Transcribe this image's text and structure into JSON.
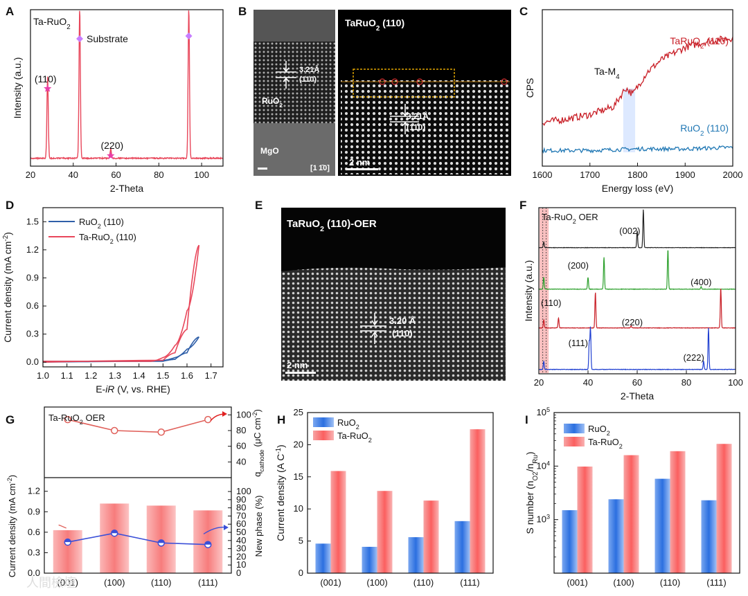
{
  "panels": {
    "A": "A",
    "B": "B",
    "C": "C",
    "D": "D",
    "E": "E",
    "F": "F",
    "G": "G",
    "H": "H",
    "I": "I"
  },
  "colors": {
    "ta": "#e8465a",
    "ru": "#2f5fa8",
    "taC": "#c81d25",
    "ruC": "#1f77b4",
    "green": "#2ca02c",
    "blue": "#1f3fd1",
    "black": "#222222"
  },
  "chart_data": [
    {
      "id": "A",
      "type": "line",
      "title": "Ta-RuO2",
      "xlabel": "2-Theta",
      "ylabel": "Intensity (a.u.)",
      "xlim": [
        20,
        110
      ],
      "xticks": [
        20,
        40,
        60,
        80,
        100
      ],
      "annotations": [
        "(110)",
        "Substrate",
        "(220)"
      ],
      "peaks": [
        {
          "x": 28,
          "height": 0.55,
          "label": "(110)",
          "marker": "star"
        },
        {
          "x": 43,
          "height": 1.0,
          "label": "Substrate",
          "marker": "diamond"
        },
        {
          "x": 57.5,
          "height": 0.06,
          "label": "(220)",
          "marker": "star"
        },
        {
          "x": 94,
          "height": 1.0,
          "label": "",
          "marker": "diamond"
        }
      ]
    },
    {
      "id": "C",
      "type": "line",
      "xlabel": "Energy loss (eV)",
      "ylabel": "CPS",
      "xlim": [
        1600,
        2000
      ],
      "xticks": [
        1600,
        1700,
        1800,
        1900,
        2000
      ],
      "annotation": "Ta-M4",
      "series": [
        {
          "name": "TaRuO2 (110)",
          "points": [
            [
              1600,
              0.28
            ],
            [
              1650,
              0.3
            ],
            [
              1700,
              0.33
            ],
            [
              1750,
              0.38
            ],
            [
              1775,
              0.5
            ],
            [
              1790,
              0.46
            ],
            [
              1820,
              0.6
            ],
            [
              1850,
              0.68
            ],
            [
              1900,
              0.76
            ],
            [
              1950,
              0.8
            ],
            [
              2000,
              0.82
            ]
          ]
        },
        {
          "name": "RuO2 (110)",
          "points": [
            [
              1600,
              0.1
            ],
            [
              1700,
              0.1
            ],
            [
              1800,
              0.11
            ],
            [
              1900,
              0.11
            ],
            [
              2000,
              0.12
            ]
          ]
        }
      ]
    },
    {
      "id": "D",
      "type": "line",
      "xlabel": "E-iR (V, vs. RHE)",
      "ylabel": "Current density (mA cm-2)",
      "xlim": [
        1.0,
        1.75
      ],
      "ylim": [
        -0.05,
        1.65
      ],
      "xticks": [
        1.0,
        1.1,
        1.2,
        1.3,
        1.4,
        1.5,
        1.6,
        1.7
      ],
      "yticks": [
        0.0,
        0.3,
        0.6,
        0.9,
        1.2,
        1.5
      ],
      "series": [
        {
          "name": "RuO2 (110)",
          "forward": [
            [
              1.0,
              0.01
            ],
            [
              1.45,
              0.01
            ],
            [
              1.5,
              0.02
            ],
            [
              1.55,
              0.05
            ],
            [
              1.6,
              0.14
            ],
            [
              1.65,
              0.27
            ]
          ],
          "backward": [
            [
              1.65,
              0.27
            ],
            [
              1.6,
              0.1
            ],
            [
              1.55,
              0.03
            ],
            [
              1.5,
              0.01
            ],
            [
              1.0,
              0.0
            ]
          ]
        },
        {
          "name": "Ta-RuO2 (110)",
          "forward": [
            [
              1.0,
              0.01
            ],
            [
              1.45,
              0.01
            ],
            [
              1.5,
              0.05
            ],
            [
              1.55,
              0.18
            ],
            [
              1.6,
              0.55
            ],
            [
              1.65,
              1.25
            ]
          ],
          "backward": [
            [
              1.65,
              1.25
            ],
            [
              1.6,
              0.35
            ],
            [
              1.55,
              0.1
            ],
            [
              1.5,
              0.02
            ],
            [
              1.0,
              0.0
            ]
          ]
        }
      ]
    },
    {
      "id": "F",
      "type": "line",
      "xlabel": "2-Theta",
      "ylabel": "Intensity (a.u.)",
      "xlim": [
        20,
        100
      ],
      "xticks": [
        20,
        40,
        60,
        80,
        100
      ],
      "annotation": "Ta-RuO2 OER",
      "traces": [
        {
          "color": "black",
          "peaks": [
            [
              22,
              0.15
            ],
            [
              60,
              0.45
            ],
            [
              62.5,
              1.0
            ]
          ],
          "labels": [
            [
              "(002)",
              57
            ]
          ]
        },
        {
          "color": "green",
          "peaks": [
            [
              22,
              0.3
            ],
            [
              40,
              0.3
            ],
            [
              46.5,
              0.8
            ],
            [
              72.5,
              1.0
            ],
            [
              86,
              0.06
            ]
          ],
          "labels": [
            [
              "(200)",
              36
            ],
            [
              "(400)",
              86
            ]
          ]
        },
        {
          "color": "taC",
          "peaks": [
            [
              22,
              0.2
            ],
            [
              28,
              0.25
            ],
            [
              43,
              0.9
            ],
            [
              57.5,
              0.05
            ],
            [
              94,
              1.0
            ]
          ],
          "labels": [
            [
              "(110)",
              25
            ],
            [
              "(220)",
              58
            ]
          ]
        },
        {
          "color": "blue",
          "peaks": [
            [
              22,
              0.2
            ],
            [
              40.5,
              0.65
            ],
            [
              41,
              1.0
            ],
            [
              87,
              0.2
            ],
            [
              89,
              1.0
            ]
          ],
          "labels": [
            [
              "(111)",
              36
            ],
            [
              "(222)",
              83
            ]
          ]
        }
      ]
    },
    {
      "id": "G",
      "type": "bar",
      "annotation": "Ta-RuO2 OER",
      "categories": [
        "(001)",
        "(100)",
        "(110)",
        "(111)"
      ],
      "q_cathode": [
        94,
        80,
        78,
        94
      ],
      "current_density": [
        0.63,
        1.02,
        0.99,
        0.92
      ],
      "new_phase": [
        38,
        49,
        37,
        35
      ],
      "ylabel_top": "qcathode (μC cm-2)",
      "ylabel_left": "Current density (mA cm-2)",
      "ylabel_right": "New phase (%)",
      "ylim_top": [
        20,
        110
      ],
      "ylim_left": [
        0,
        1.4
      ],
      "ylim_right": [
        0,
        117
      ],
      "yticks_top": [
        40,
        60,
        80,
        100
      ],
      "yticks_left": [
        0.0,
        0.3,
        0.6,
        0.9,
        1.2
      ],
      "yticks_right": [
        0,
        10,
        20,
        30,
        40,
        50,
        60,
        70,
        80,
        90,
        100
      ]
    },
    {
      "id": "H",
      "type": "bar",
      "categories": [
        "(001)",
        "(100)",
        "(110)",
        "(111)"
      ],
      "series": [
        {
          "name": "RuO2",
          "values": [
            4.6,
            4.1,
            5.6,
            8.1
          ]
        },
        {
          "name": "Ta-RuO2",
          "values": [
            15.9,
            12.8,
            11.3,
            22.4
          ]
        }
      ],
      "ylabel": "Current density (A C-1)",
      "ylim": [
        0,
        25
      ],
      "yticks": [
        0,
        5,
        10,
        15,
        20,
        25
      ]
    },
    {
      "id": "I",
      "type": "bar",
      "categories": [
        "(001)",
        "(100)",
        "(110)",
        "(111)"
      ],
      "series": [
        {
          "name": "RuO2",
          "values": [
            1500,
            2400,
            5800,
            2300
          ]
        },
        {
          "name": "Ta-RuO2",
          "values": [
            9800,
            16000,
            19000,
            26000
          ]
        }
      ],
      "ylabel": "S number (nO2/nRu)",
      "yscale": "log",
      "ylim": [
        100,
        100000
      ],
      "yticks": [
        "10^3",
        "10^4",
        "10^5"
      ]
    }
  ],
  "images": {
    "B": {
      "left_labels": [
        "3.21Å",
        "(110)",
        "RuO2",
        "MgO",
        "[1-10]"
      ],
      "title": "TaRuO2 (110)",
      "d_label": "3.21Å",
      "plane": "(110)",
      "scale": "2 nm"
    },
    "E": {
      "title": "TaRuO2 (110)-OER",
      "d_label": "3.20 Å",
      "plane": "(110)",
      "scale": "2 nm"
    }
  },
  "watermark": "人間檢壇"
}
